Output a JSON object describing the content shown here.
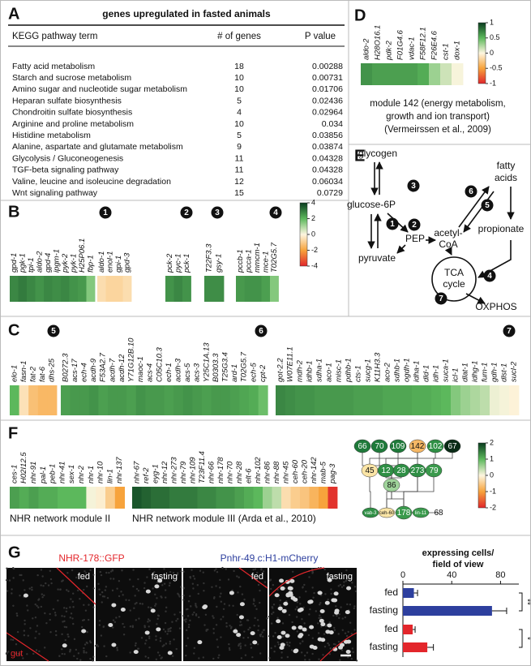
{
  "colormap": [
    "#e0262b",
    "#f7a33c",
    "#fdf6e0",
    "#5cb85c",
    "#0a3d1f"
  ],
  "A": {
    "label": "A",
    "title": "genes upregulated in fasted animals",
    "headers": [
      "KEGG pathway term",
      "# of genes",
      "P value"
    ],
    "rows": [
      [
        "Fatty acid metabolism",
        18,
        0.00288
      ],
      [
        "Starch and sucrose metabolism",
        10,
        0.00731
      ],
      [
        "Amino sugar and nucleotide sugar metabolism",
        10,
        0.01706
      ],
      [
        "Heparan sulfate biosynthesis",
        5,
        0.02436
      ],
      [
        "Chondroitin sulfate biosynthesis",
        4,
        0.02964
      ],
      [
        "Arginine and proline metabolism",
        10,
        0.034
      ],
      [
        "Histidine metabolism",
        5,
        0.03856
      ],
      [
        "Alanine, aspartate and glutamate metabolism",
        9,
        0.03874
      ],
      [
        "Glycolysis / Gluconeogenesis",
        11,
        0.04328
      ],
      [
        "TGF-beta signaling pathway",
        11,
        0.04328
      ],
      [
        "Valine, leucine and isoleucine degradation",
        12,
        0.06034
      ],
      [
        "Wnt signaling pathway",
        15,
        0.0729
      ]
    ]
  },
  "B": {
    "label": "B",
    "scale": {
      "lim": [
        -4,
        4
      ],
      "ticks": [
        4,
        2,
        0,
        -2,
        -4
      ]
    },
    "groups": [
      {
        "genes": [
          "gpd-1",
          "pgk-1",
          "tpi-1",
          "aldo-2",
          "gpd-4",
          "ipgm-1",
          "pyk-2",
          "pyk-1",
          "H25P06.1",
          "fbp-1"
        ],
        "values": [
          2.8,
          3,
          2.8,
          2.6,
          2.8,
          2.7,
          2.8,
          2.6,
          2.5,
          1.5
        ]
      },
      {
        "marker": "1",
        "genes": [
          "aldo-1",
          "enol-1",
          "gpi-1",
          "gpd-3"
        ],
        "values": [
          -0.6,
          -0.8,
          -0.8,
          -0.6
        ]
      },
      {
        "marker": "2",
        "genes": [
          "pck-2",
          "pyc-1",
          "pck-1"
        ],
        "values": [
          2.6,
          2.8,
          2.6
        ]
      },
      {
        "marker": "3",
        "genes": [
          "T22F3.3",
          "gsy-1"
        ],
        "values": [
          2.7,
          2.7
        ]
      },
      {
        "marker": "4",
        "genes": [
          "pccb-1",
          "pcca-1",
          "mmcm-1",
          "mce-1",
          "T02G5.7"
        ],
        "values": [
          2.5,
          2.6,
          2.6,
          2.4,
          1.5
        ]
      }
    ]
  },
  "C": {
    "label": "C",
    "groups": [
      {
        "marker": "5",
        "genes": [
          "elo-1",
          "fasn-1",
          "fat-2",
          "fat-6",
          "dhs-25"
        ],
        "values": [
          2,
          -0.5,
          -1.3,
          -1.5,
          -1.5
        ]
      },
      {
        "marker": "6",
        "genes": [
          "B0272.3",
          "acs-17",
          "ech-4",
          "acdh-9",
          "F53A2.7",
          "acdh-7",
          "acdh-12",
          "Y71G12B.10",
          "maoc-1",
          "acs-4",
          "C05C10.3",
          "ech-1",
          "acdh-3",
          "acs-5",
          "acs-3",
          "Y25C1A.13",
          "B0303.3",
          "T25G3.4",
          "ard-1",
          "T02G5.7",
          "ech-5",
          "cpt-2"
        ],
        "values": [
          2.4,
          2.5,
          2.5,
          2.6,
          2.4,
          2.5,
          2.5,
          2.4,
          2.6,
          2.5,
          2.5,
          2.4,
          2.5,
          2.6,
          2.5,
          2.4,
          2.5,
          2.5,
          2.4,
          2.3,
          2.2,
          1.8
        ]
      },
      {
        "marker": "7",
        "genes": [
          "got-2.2",
          "W07E11.1",
          "mdh-2",
          "idhb-1",
          "sdha-1",
          "aco-1",
          "misc-1",
          "pdhb-1",
          "cts-1",
          "sucg-1",
          "K11H3.3",
          "aco-2",
          "sdhb-1",
          "ogdh-1",
          "idha-1",
          "dld-1",
          "idh-1",
          "suca-1",
          "icl-1",
          "dlat-1",
          "idhg-1",
          "fum-1",
          "gdh-1",
          "dlst-1",
          "sucl-2"
        ],
        "values": [
          2.8,
          2.7,
          2.6,
          2.6,
          2.5,
          2.5,
          2.5,
          2.5,
          2.4,
          2.4,
          2.4,
          2.3,
          2.3,
          2.3,
          2.2,
          2.2,
          2.1,
          2,
          1.5,
          1.2,
          1,
          0.8,
          0.2,
          0.1,
          -0.1
        ]
      }
    ]
  },
  "D": {
    "label": "D",
    "scale": {
      "lim": [
        -1,
        1
      ],
      "ticks": [
        1,
        0.5,
        0,
        -0.5,
        -1
      ]
    },
    "genes": [
      "aldo-2",
      "H28O16.1",
      "pdk-2",
      "F01G4.6",
      "vdac-1",
      "F58F12.1",
      "F26E4.6",
      "cst-1",
      "dox-1"
    ],
    "values": [
      0.65,
      0.6,
      0.6,
      0.6,
      0.6,
      0.55,
      0.3,
      0.15,
      0.02
    ],
    "caption": [
      "module 142 (energy metabolism,",
      "growth and ion transport)",
      "(Vermeirssen et al., 2009)"
    ]
  },
  "E": {
    "label": "E",
    "metabolites": [
      "glycogen",
      "glucose-6P",
      "PEP",
      "pyruvate",
      "acetyl-",
      "CoA",
      "fatty",
      "acids",
      "propionate",
      "TCA",
      "cycle",
      "OXPHOS"
    ],
    "steps": [
      "1",
      "2",
      "3",
      "4",
      "5",
      "6",
      "7"
    ]
  },
  "F": {
    "label": "F",
    "scale": {
      "lim": [
        -2,
        2
      ],
      "ticks": [
        2,
        1,
        0,
        -1,
        -2
      ]
    },
    "modules": [
      {
        "caption": "NHR network module II",
        "genes": [
          "ces-1",
          "H02I12.5",
          "nhr-91",
          "pal-1",
          "peb-1",
          "nhr-41",
          "sex-1",
          "nhr-2",
          "nhr-1",
          "nhr-10",
          "lin-1",
          "nhr-137"
        ],
        "values": [
          1.2,
          1.1,
          1.2,
          1.1,
          1.1,
          1,
          1,
          1,
          0.05,
          -0.1,
          -0.5,
          -1
        ]
      },
      {
        "caption": "NHR network module III (Arda et al., 2010)",
        "genes": [
          "nhr-67",
          "ref-2",
          "eyg-1",
          "nhr-12",
          "nhr-273",
          "nhr-79",
          "nhr-109",
          "T23F11.4",
          "nhr-66",
          "nhr-178",
          "nhr-70",
          "nhr-28",
          "elt-6",
          "nhr-102",
          "nhr-86",
          "nhr-88",
          "nhr-45",
          "ceh-60",
          "ceh-20",
          "nhr-142",
          "mab-5",
          "pag-3"
        ],
        "values": [
          1.8,
          1.7,
          1.6,
          1.6,
          1.5,
          1.5,
          1.5,
          1.4,
          1.4,
          1.3,
          1.3,
          1.2,
          1.1,
          1,
          0.6,
          0.4,
          -0.3,
          -0.5,
          -0.6,
          -0.8,
          -1,
          -1.9
        ]
      }
    ],
    "network": [
      {
        "label": "66",
        "color": "#1f7a3a"
      },
      {
        "label": "70",
        "color": "#1f7a3a"
      },
      {
        "label": "109",
        "color": "#1f7a3a"
      },
      {
        "label": "142",
        "color": "#f6b865"
      },
      {
        "label": "102",
        "color": "#2f8f45"
      },
      {
        "label": "67",
        "color": "#0a2b16"
      },
      {
        "label": "45",
        "color": "#fbe5a6"
      },
      {
        "label": "12",
        "color": "#2f8f45"
      },
      {
        "label": "28",
        "color": "#2f8f45"
      },
      {
        "label": "273",
        "color": "#2f8f45"
      },
      {
        "label": "79",
        "color": "#3a9a4c"
      },
      {
        "label": "86",
        "color": "#9fd39a"
      },
      {
        "label": "vab-3",
        "color": "#2f8f45"
      },
      {
        "label": "ceh-60",
        "color": "#fbe5a6"
      },
      {
        "label": "178",
        "color": "#3a9a4c"
      },
      {
        "label": "lin-11",
        "color": "#3a9a4c"
      },
      {
        "label": "68",
        "color": "#ffffff"
      }
    ]
  },
  "G": {
    "label": "G",
    "image_groups": [
      {
        "title": "NHR-178::GFP",
        "color": "#e3262b",
        "panels": [
          "fed",
          "fasting"
        ]
      },
      {
        "title": "Pnhr-49.c:H1-mCherry",
        "color": "#2d3f9e",
        "panels": [
          "fed",
          "fasting"
        ]
      }
    ],
    "gut": "gut",
    "chart_data": {
      "type": "bar",
      "orientation": "horizontal",
      "title": [
        "expressing cells/",
        "field of view"
      ],
      "categories": [
        "fed",
        "fasting",
        "fed",
        "fasting"
      ],
      "values": [
        9,
        73,
        8,
        20
      ],
      "errors": [
        3,
        12,
        2,
        5
      ],
      "colors": [
        "#2d3f9e",
        "#2d3f9e",
        "#e3262b",
        "#e3262b"
      ],
      "xlim": [
        0,
        95
      ],
      "xticks": [
        0,
        40,
        80
      ],
      "significance": [
        "**",
        "*"
      ]
    }
  }
}
